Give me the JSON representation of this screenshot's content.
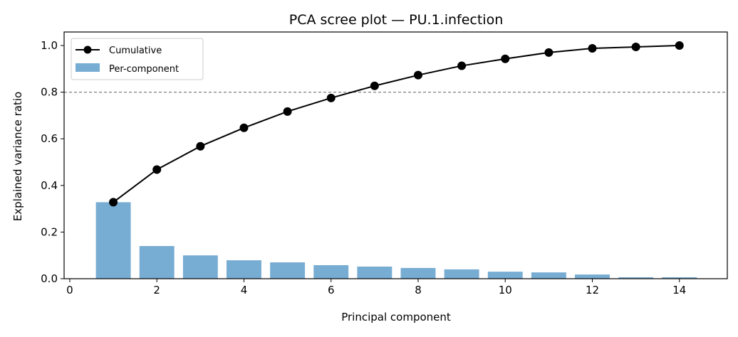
{
  "chart_data": {
    "type": "bar+line",
    "title": "PCA scree plot — PU.1.infection",
    "xlabel": "Principal component",
    "ylabel": "Explained variance ratio",
    "xlim": [
      -0.13,
      15.1
    ],
    "ylim": [
      0,
      1.058
    ],
    "xticks": [
      0,
      2,
      4,
      6,
      8,
      10,
      12,
      14
    ],
    "yticks": [
      0.0,
      0.2,
      0.4,
      0.6,
      0.8,
      1.0
    ],
    "xtick_labels": [
      "0",
      "2",
      "4",
      "6",
      "8",
      "10",
      "12",
      "14"
    ],
    "ytick_labels": [
      "0.0",
      "0.2",
      "0.4",
      "0.6",
      "0.8",
      "1.0"
    ],
    "grid": false,
    "legend_position": "top-left",
    "threshold_line": {
      "y": 0.8,
      "style": "dashed",
      "color": "#808080"
    },
    "x": [
      1,
      2,
      3,
      4,
      5,
      6,
      7,
      8,
      9,
      10,
      11,
      12,
      13,
      14
    ],
    "series": [
      {
        "name": "Cumulative",
        "kind": "line",
        "color": "#000000",
        "marker": "circle",
        "values": [
          0.328,
          0.468,
          0.568,
          0.647,
          0.717,
          0.775,
          0.827,
          0.873,
          0.913,
          0.943,
          0.97,
          0.988,
          0.994,
          1.0
        ]
      },
      {
        "name": "Per-component",
        "kind": "bar",
        "color": "#77acd3",
        "values": [
          0.328,
          0.14,
          0.1,
          0.079,
          0.07,
          0.058,
          0.052,
          0.046,
          0.04,
          0.03,
          0.027,
          0.018,
          0.006,
          0.006
        ]
      }
    ]
  }
}
